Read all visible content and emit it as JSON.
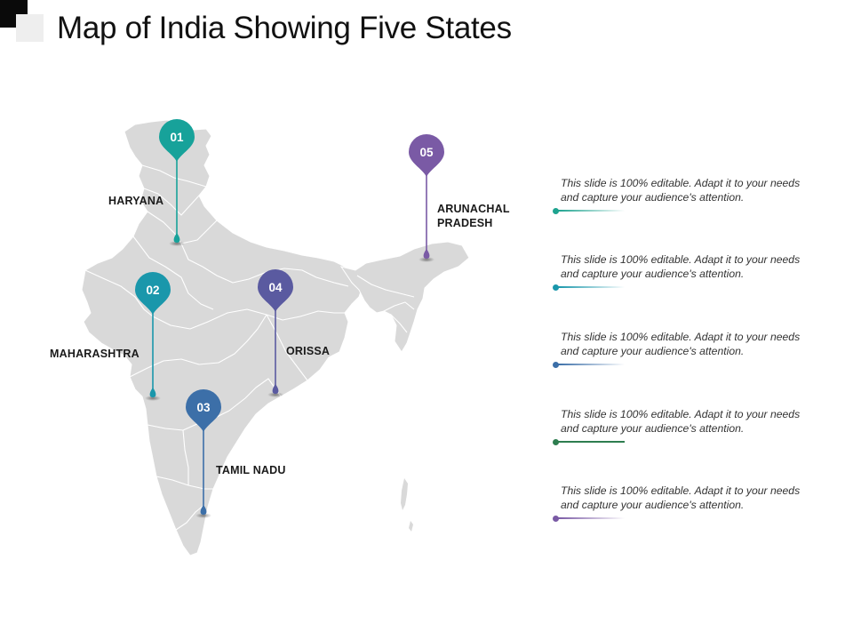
{
  "title": "Map of India Showing Five States",
  "colors": {
    "map_fill": "#d9d9d9",
    "map_border": "#ffffff",
    "pin_01": "#17a29a",
    "pin_02": "#1a97ab",
    "pin_03": "#3c6fa8",
    "pin_04": "#5a5aa0",
    "pin_05": "#7a5aa5"
  },
  "markers": [
    {
      "number": "01",
      "state": "HARYANA",
      "color": "#17a29a"
    },
    {
      "number": "02",
      "state": "MAHARASHTRA",
      "color": "#1a97ab"
    },
    {
      "number": "03",
      "state": "TAMIL NADU",
      "color": "#3c6fa8"
    },
    {
      "number": "04",
      "state": "ORISSA",
      "color": "#5a5aa0"
    },
    {
      "number": "05",
      "state": "ARUNACHAL\nPRADESH",
      "color": "#7a5aa5"
    }
  ],
  "notes": [
    {
      "text": "This slide is 100% editable. Adapt it to your needs\nand capture your audience's attention.",
      "color": "#1ea38f"
    },
    {
      "text": "This slide is 100% editable. Adapt it to your needs\nand capture your audience's attention.",
      "color": "#1a97ab"
    },
    {
      "text": "This slide is 100% editable. Adapt it to your needs\nand capture your audience's attention.",
      "color": "#3c6fa8"
    },
    {
      "text": "This slide is 100% editable. Adapt it to your needs\nand capture your audience's attention.",
      "color": "#2e7d4f"
    },
    {
      "text": "This slide is 100% editable. Adapt it to your needs\nand capture your audience's attention.",
      "color": "#7a5aa5"
    }
  ]
}
